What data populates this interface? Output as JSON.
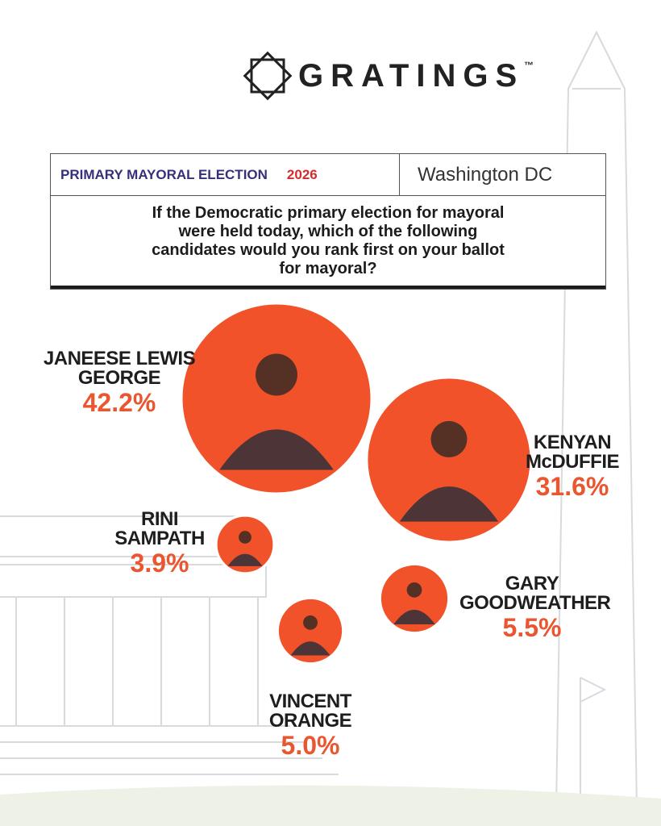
{
  "header": {
    "logo": "GRATINGS",
    "trademark": "™"
  },
  "info": {
    "election": "PRIMARY MAYORAL ELECTION",
    "year": "2026",
    "location": "Washington DC",
    "question": "If the Democratic primary election for mayoral were held today, which of the following candidates would you rank first on your ballot for mayoral?"
  },
  "chart_data": {
    "type": "bubble",
    "color": "#f2522a",
    "label_color": "#e9562f",
    "categories": [
      "JANEESE LEWIS GEORGE",
      "KENYAN McDUFFIE",
      "RINI SAMPATH",
      "GARY GOODWEATHER",
      "VINCENT ORANGE"
    ],
    "values": [
      42.2,
      31.6,
      3.9,
      5.5,
      5.0
    ],
    "value_labels": [
      "42.2%",
      "31.6%",
      "3.9%",
      "5.5%",
      "5.0%"
    ]
  }
}
